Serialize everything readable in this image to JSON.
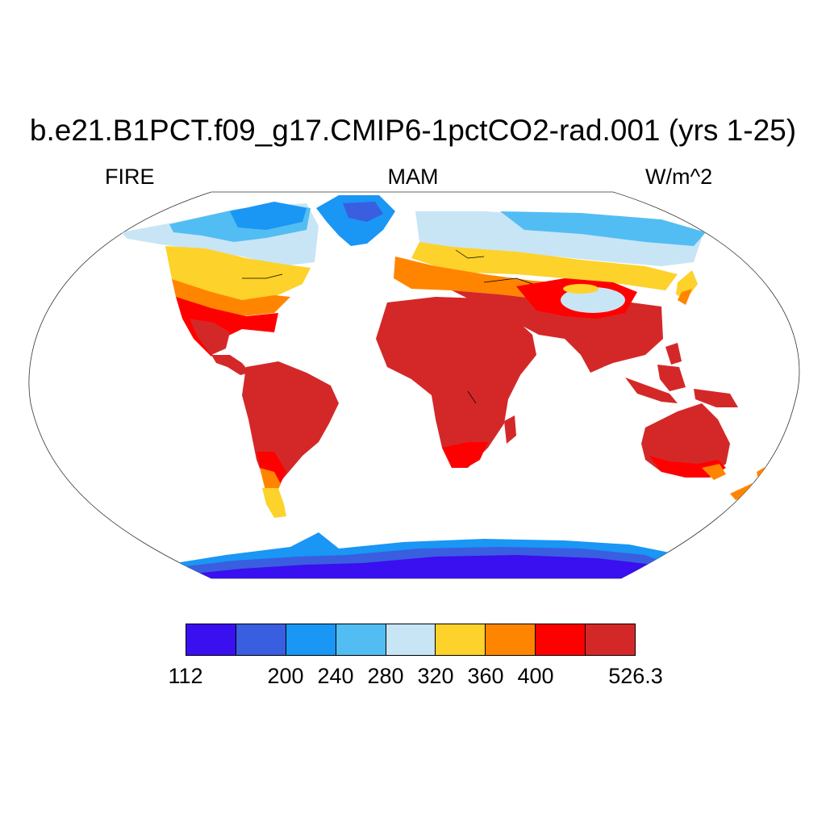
{
  "header": {
    "title": "b.e21.B1PCT.f09_g17.CMIP6-1pctCO2-rad.001 (yrs 1-25)",
    "left_label": "FIRE",
    "center_label": "MAM",
    "right_label": "W/m^2"
  },
  "map": {
    "projection": "Robinson",
    "field": "FIRE",
    "season": "MAM",
    "units": "W/m^2"
  },
  "colorbar": {
    "colors": [
      "#3a0ff0",
      "#3a5ee0",
      "#1a96f5",
      "#52bdf2",
      "#c8e5f5",
      "#fdd22a",
      "#ff8500",
      "#ff0000",
      "#d42828"
    ],
    "tick_labels": [
      "112",
      "200",
      "240",
      "280",
      "320",
      "360",
      "400",
      "526.3"
    ],
    "tick_boundary_index": [
      0,
      2,
      3,
      4,
      5,
      6,
      7,
      9
    ]
  }
}
